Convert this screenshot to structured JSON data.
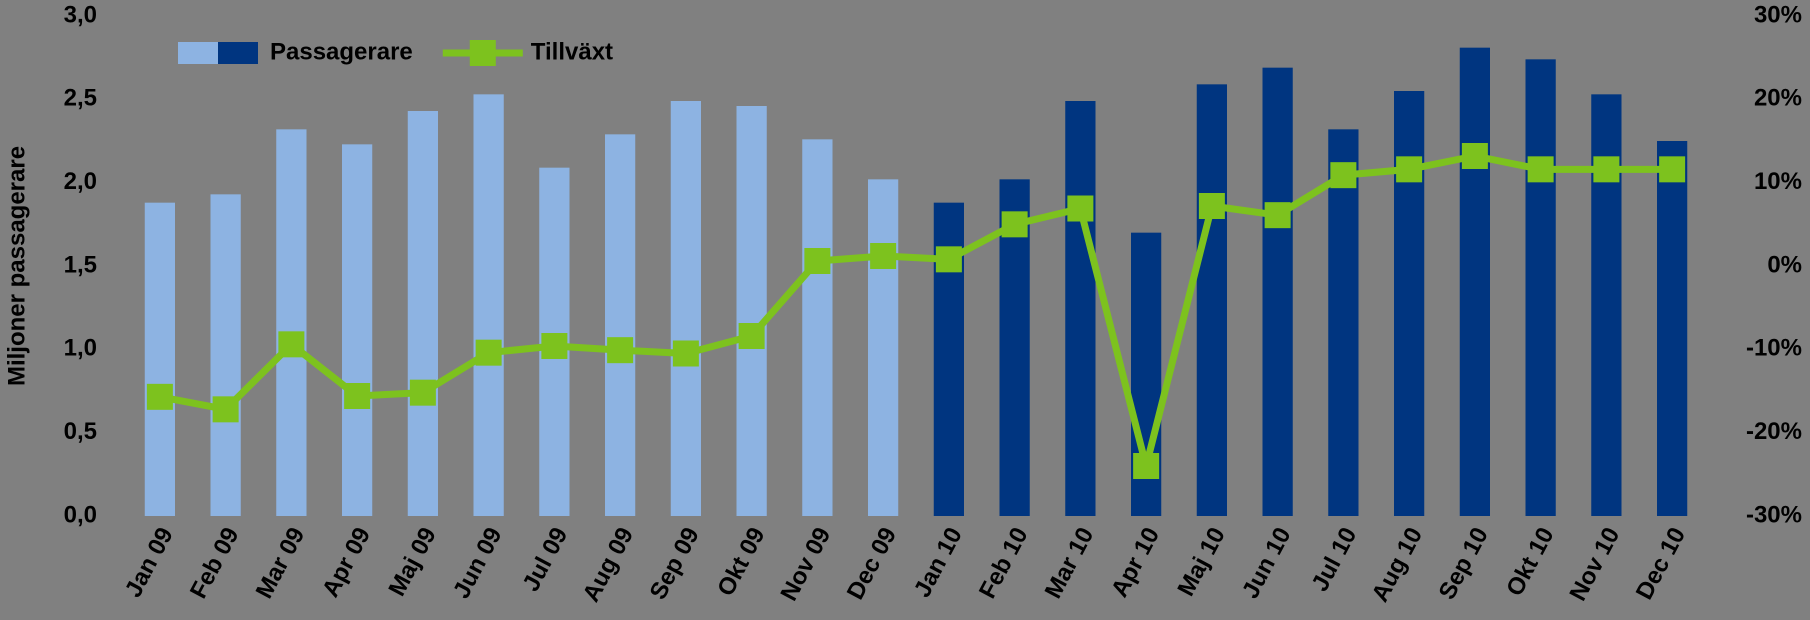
{
  "chart_data": {
    "type": "bar_line",
    "y_label": "Miljoner passagerare",
    "categories": [
      "Jan 09",
      "Feb 09",
      "Mar 09",
      "Apr 09",
      "Maj 09",
      "Jun 09",
      "Jul 09",
      "Aug 09",
      "Sep 09",
      "Okt 09",
      "Nov 09",
      "Dec 09",
      "Jan 10",
      "Feb 10",
      "Mar 10",
      "Apr 10",
      "Maj 10",
      "Jun 10",
      "Jul 10",
      "Aug 10",
      "Sep 10",
      "Okt 10",
      "Nov 10",
      "Dec 10"
    ],
    "series": [
      {
        "name": "Passagerare",
        "type": "bar",
        "colors": [
          "#8db3e2",
          "#8db3e2",
          "#8db3e2",
          "#8db3e2",
          "#8db3e2",
          "#8db3e2",
          "#8db3e2",
          "#8db3e2",
          "#8db3e2",
          "#8db3e2",
          "#8db3e2",
          "#8db3e2",
          "#003580",
          "#003580",
          "#003580",
          "#003580",
          "#003580",
          "#003580",
          "#003580",
          "#003580",
          "#003580",
          "#003580",
          "#003580",
          "#003580"
        ],
        "values": [
          1.88,
          1.93,
          2.32,
          2.23,
          2.43,
          2.53,
          2.09,
          2.29,
          2.49,
          2.46,
          2.26,
          2.02,
          1.88,
          2.02,
          2.49,
          1.7,
          2.59,
          2.69,
          2.32,
          2.55,
          2.81,
          2.74,
          2.53,
          2.25
        ]
      },
      {
        "name": "Tillväxt",
        "type": "line",
        "axis": "y2",
        "color": "#7dc21e",
        "values": [
          -15.7,
          -17.2,
          -9.4,
          -15.6,
          -15.2,
          -10.4,
          -9.6,
          -10.1,
          -10.5,
          -8.4,
          0.6,
          1.2,
          0.8,
          5.0,
          6.9,
          -24.0,
          7.2,
          6.1,
          10.9,
          11.6,
          13.2,
          11.6,
          11.6,
          11.6
        ]
      }
    ],
    "ylim": [
      0,
      3
    ],
    "yticks": [
      {
        "value": 0,
        "label": "0,0"
      },
      {
        "value": 0.5,
        "label": "0,5"
      },
      {
        "value": 1,
        "label": "1,0"
      },
      {
        "value": 1.5,
        "label": "1,5"
      },
      {
        "value": 2,
        "label": "2,0"
      },
      {
        "value": 2.5,
        "label": "2,5"
      },
      {
        "value": 3,
        "label": "3,0"
      }
    ],
    "y2lim": [
      -30,
      30
    ],
    "y2ticks": [
      {
        "value": -30,
        "label": "-30%"
      },
      {
        "value": -20,
        "label": "-20%"
      },
      {
        "value": -10,
        "label": "-10%"
      },
      {
        "value": 0,
        "label": "0%"
      },
      {
        "value": 10,
        "label": "10%"
      },
      {
        "value": 20,
        "label": "20%"
      },
      {
        "value": 30,
        "label": "30%"
      }
    ],
    "legend": "top-left"
  }
}
